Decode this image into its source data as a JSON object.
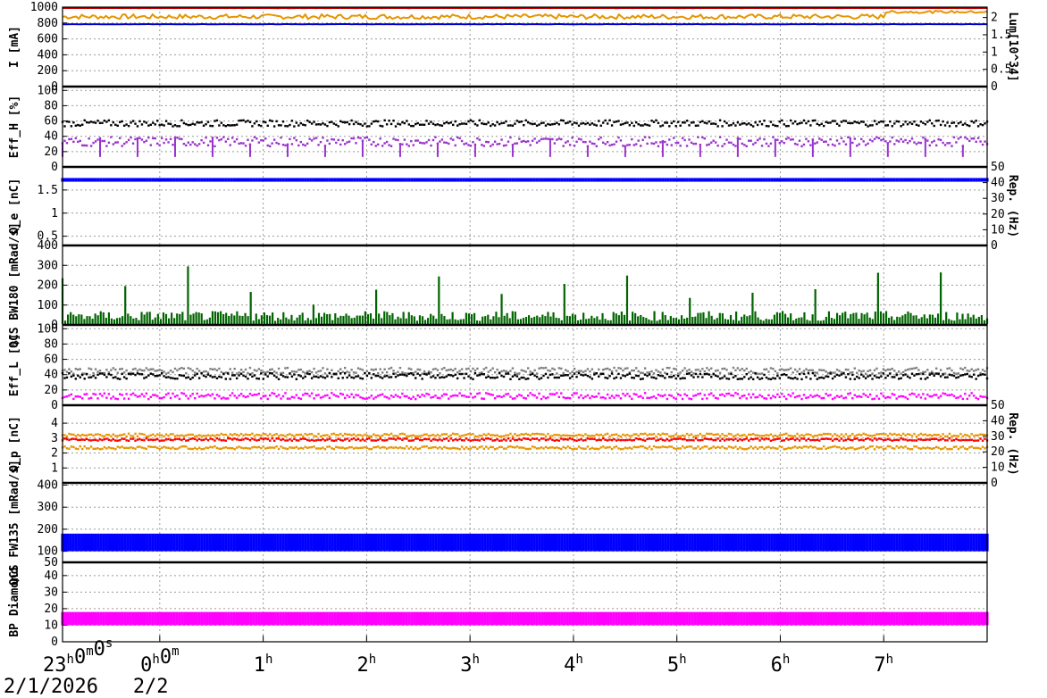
{
  "chart_data": {
    "type": "line",
    "x_axis": {
      "tick_labels": [
        {
          "base": "23",
          "sup": "h",
          "rest": "0",
          "sup2": "m",
          "rest2": "0",
          "sup3": "s",
          "rest3": ""
        },
        {
          "base": "0",
          "sup": "h",
          "rest": "0",
          "sup2": "m",
          "rest2": "",
          "sup3": "",
          "rest3": ""
        },
        {
          "base": "1",
          "sup": "h"
        },
        {
          "base": "2",
          "sup": "h"
        },
        {
          "base": "3",
          "sup": "h"
        },
        {
          "base": "4",
          "sup": "h"
        },
        {
          "base": "5",
          "sup": "h"
        },
        {
          "base": "6",
          "sup": "h"
        },
        {
          "base": "7",
          "sup": "h"
        }
      ],
      "dates": [
        "2/1/2026",
        "2/2"
      ],
      "range_hours": [
        -0.94,
        8.0
      ]
    },
    "panels": [
      {
        "ylabel": "I [mA]",
        "ylim": [
          0,
          1000
        ],
        "yticks": [
          "0",
          "200",
          "400",
          "600",
          "800",
          "1000"
        ],
        "right_ylabel": "Lum[10^34]",
        "right_yticks": [
          "0",
          "0.5",
          "1",
          "1.5",
          "2"
        ],
        "right_ylim": [
          0,
          2.3
        ],
        "series": [
          {
            "color": "#e69500",
            "level": 880,
            "noise": 30,
            "bump_after": 7.0,
            "bump_to": 940
          },
          {
            "color": "#c00000",
            "level": 990,
            "noise": 3
          },
          {
            "color": "#0000cc",
            "level": 785,
            "noise": 2
          }
        ]
      },
      {
        "ylabel": "Eff_H [%]",
        "ylim": [
          0,
          105
        ],
        "yticks": [
          "0",
          "20",
          "40",
          "60",
          "80",
          "100"
        ],
        "series": [
          {
            "color": "#000000",
            "level": 57,
            "noise": 4,
            "style": "dots"
          },
          {
            "color": "#9932cc",
            "level": 33,
            "noise": 6,
            "style": "dots",
            "drops": true
          }
        ]
      },
      {
        "ylabel": "Q_e [nC]",
        "ylim": [
          0.3,
          2.0
        ],
        "yticks": [
          "0.5",
          "1",
          "1.5"
        ],
        "right_ylabel": "Rep. (Hz)",
        "right_yticks": [
          "0",
          "10",
          "20",
          "30",
          "40",
          "50"
        ],
        "right_ylim": [
          0,
          50
        ],
        "series": [
          {
            "color": "#0000ff",
            "level": 1.72,
            "noise": 0.04,
            "style": "band"
          }
        ]
      },
      {
        "ylabel": "QCS BW180 [mRad/s]",
        "ylim": [
          0,
          400
        ],
        "yticks": [
          "0",
          "100",
          "200",
          "300",
          "400"
        ],
        "series": [
          {
            "color": "#006400",
            "level": 20,
            "noise": 25,
            "style": "spikes"
          }
        ]
      },
      {
        "ylabel": "Eff_L [%]",
        "ylim": [
          0,
          105
        ],
        "yticks": [
          "0",
          "20",
          "40",
          "60",
          "80",
          "100"
        ],
        "series": [
          {
            "color": "#808080",
            "level": 45,
            "noise": 4,
            "style": "dots"
          },
          {
            "color": "#000000",
            "level": 38,
            "noise": 4,
            "style": "dots"
          },
          {
            "color": "#ff00ff",
            "level": 12,
            "noise": 4,
            "style": "dots"
          }
        ]
      },
      {
        "ylabel": "Q_p [nC]",
        "ylim": [
          0,
          5.2
        ],
        "yticks": [
          "1",
          "2",
          "3",
          "4"
        ],
        "right_ylabel": "Rep. (Hz)",
        "right_yticks": [
          "0",
          "10",
          "20",
          "30",
          "40",
          "50"
        ],
        "right_ylim": [
          0,
          50
        ],
        "series": [
          {
            "color": "#e69500",
            "level": 3.2,
            "noise": 0.1,
            "style": "dots"
          },
          {
            "color": "#ff0000",
            "level": 2.9,
            "noise": 0.08,
            "style": "dots"
          },
          {
            "color": "#e69500",
            "level": 2.35,
            "noise": 0.1,
            "style": "dots"
          }
        ]
      },
      {
        "ylabel": "QCS FW135 [mRad/s]",
        "ylim": [
          50,
          410
        ],
        "yticks": [
          "50",
          "100",
          "200",
          "300",
          "400"
        ],
        "series": [
          {
            "color": "#0000ff",
            "level": 140,
            "noise": 40,
            "style": "band"
          }
        ]
      },
      {
        "ylabel": "BP Diamond",
        "ylim": [
          0,
          48
        ],
        "yticks": [
          "0",
          "10",
          "20",
          "30",
          "40"
        ],
        "series": [
          {
            "color": "#ff00ff",
            "level": 14,
            "noise": 4,
            "style": "band"
          }
        ]
      }
    ],
    "grid": true
  }
}
